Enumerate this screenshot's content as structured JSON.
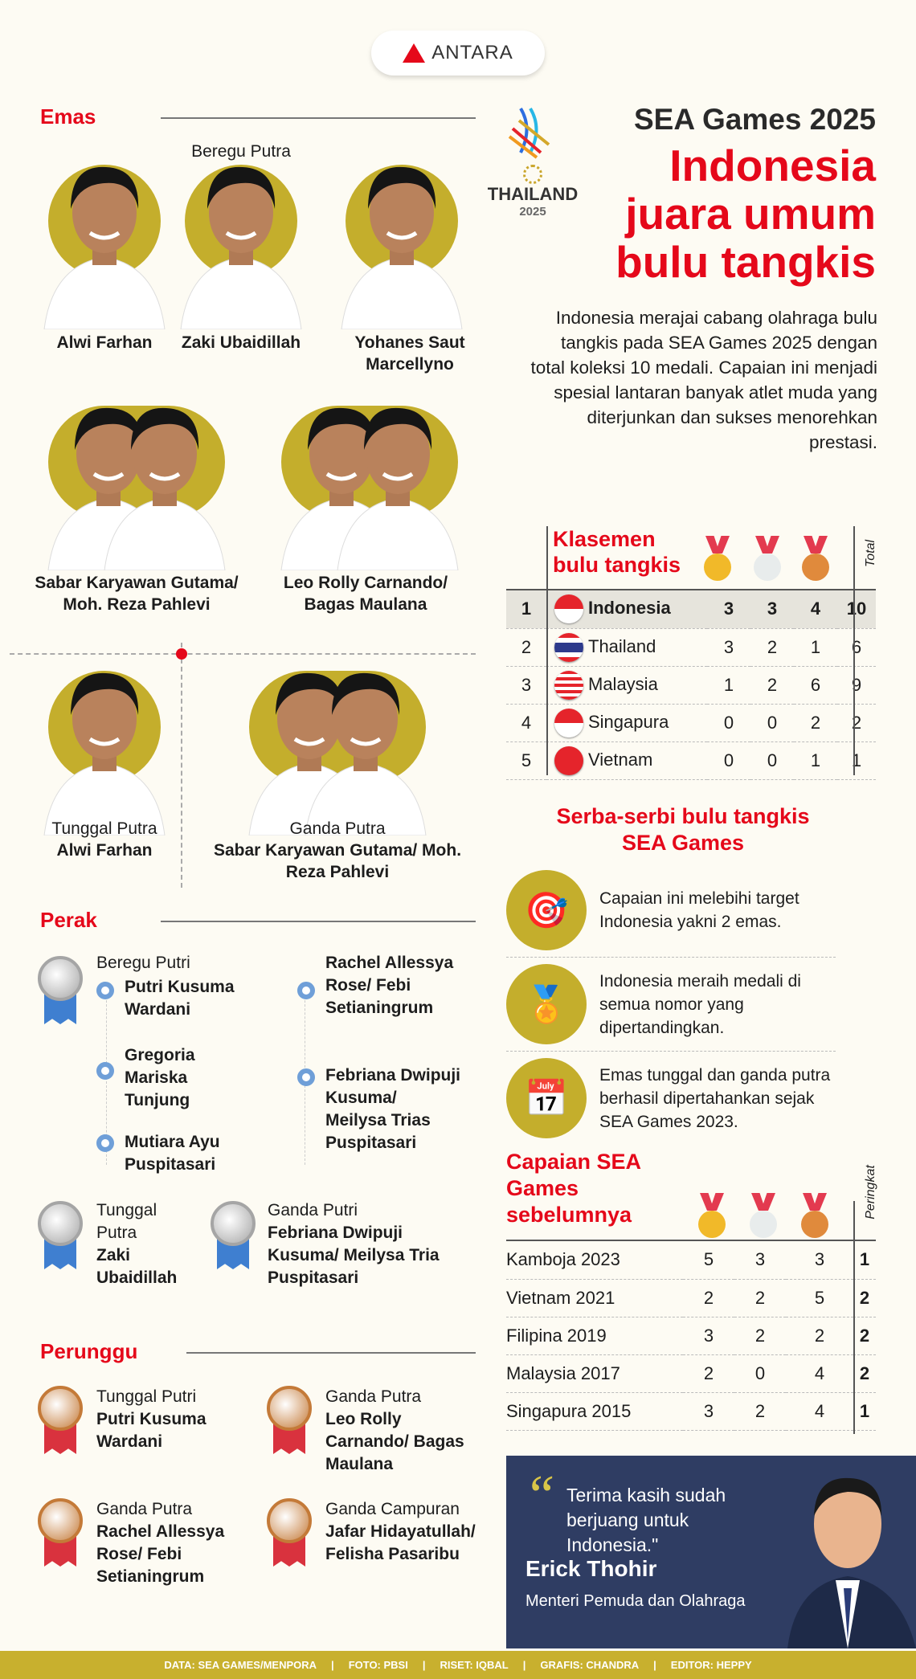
{
  "brand": "ANTARA",
  "colors": {
    "accent_red": "#e5081a",
    "gold_circle": "#c4ae2c",
    "navy": "#2f3d63",
    "footer": "#c8b02e",
    "background": "#fdfbf3"
  },
  "logo": {
    "country": "THAILAND",
    "year": "2025"
  },
  "header": {
    "title": "SEA Games 2025",
    "headline": [
      "Indonesia",
      "juara umum",
      "bulu tangkis"
    ],
    "intro": "Indonesia merajai cabang olahraga bulu tangkis pada SEA Games 2025 dengan total koleksi 10 medali. Capaian ini menjadi spesial lantaran banyak atlet muda yang diterjunkan dan sukses menorehkan prestasi."
  },
  "gold": {
    "title": "Emas",
    "team_label": "Beregu Putra",
    "team": [
      "Alwi Farhan",
      "Zaki Ubaidillah",
      "Yohanes Saut Marcellyno",
      "Sabar Karyawan Gutama/ Moh. Reza Pahlevi",
      "Leo Rolly Carnando/ Bagas Maulana"
    ],
    "singles": {
      "label": "Tunggal Putra",
      "name": "Alwi Farhan"
    },
    "doubles": {
      "label": "Ganda Putra",
      "name": "Sabar Karyawan Gutama/ Moh. Reza Pahlevi"
    }
  },
  "silver": {
    "title": "Perak",
    "team": {
      "label": "Beregu Putri",
      "members": [
        "Putri Kusuma Wardani",
        "Gregoria Mariska Tunjung",
        "Mutiara Ayu Puspitasari",
        "Rachel Allessya Rose/ Febi Setianingrum",
        "Febriana Dwipuji Kusuma/ Meilysa Trias Puspitasari"
      ]
    },
    "singles": {
      "label": "Tunggal Putra",
      "name": "Zaki Ubaidillah"
    },
    "doubles": {
      "label": "Ganda Putri",
      "name": "Febriana Dwipuji Kusuma/ Meilysa Tria Puspitasari"
    }
  },
  "bronze": {
    "title": "Perunggu",
    "items": [
      {
        "label": "Tunggal Putri",
        "name": "Putri Kusuma Wardani"
      },
      {
        "label": "Ganda Putra",
        "name": "Leo Rolly Carnando/ Bagas Maulana"
      },
      {
        "label": "Ganda Putra",
        "name": "Rachel Allessya Rose/ Febi Setianingrum"
      },
      {
        "label": "Ganda Campuran",
        "name": "Jafar Hidayatullah/ Felisha Pasaribu"
      }
    ]
  },
  "standings": {
    "title": "Klasemen bulu tangkis",
    "total_label": "Total",
    "rows": [
      {
        "rank": "1",
        "country": "Indonesia",
        "gold": "3",
        "silver": "3",
        "bronze": "4",
        "total": "10"
      },
      {
        "rank": "2",
        "country": "Thailand",
        "gold": "3",
        "silver": "2",
        "bronze": "1",
        "total": "6"
      },
      {
        "rank": "3",
        "country": "Malaysia",
        "gold": "1",
        "silver": "2",
        "bronze": "6",
        "total": "9"
      },
      {
        "rank": "4",
        "country": "Singapura",
        "gold": "0",
        "silver": "0",
        "bronze": "2",
        "total": "2"
      },
      {
        "rank": "5",
        "country": "Vietnam",
        "gold": "0",
        "silver": "0",
        "bronze": "1",
        "total": "1"
      }
    ]
  },
  "facts": {
    "title": "Serba-serbi bulu tangkis SEA Games",
    "items": [
      {
        "icon": "target-shuttlecock-icon",
        "text": "Capaian ini melebihi target Indonesia yakni 2 emas."
      },
      {
        "icon": "medals-icon",
        "text": "Indonesia meraih medali di semua nomor yang dipertandingkan."
      },
      {
        "icon": "calendar-badge-icon",
        "text": "Emas tunggal dan ganda putra berhasil dipertahankan sejak SEA Games 2023."
      }
    ]
  },
  "history": {
    "title": "Capaian SEA Games sebelumnya",
    "rank_label": "Peringkat",
    "rows": [
      {
        "event": "Kamboja 2023",
        "gold": "5",
        "silver": "3",
        "bronze": "3",
        "rank": "1"
      },
      {
        "event": "Vietnam 2021",
        "gold": "2",
        "silver": "2",
        "bronze": "5",
        "rank": "2"
      },
      {
        "event": "Filipina 2019",
        "gold": "3",
        "silver": "2",
        "bronze": "2",
        "rank": "2"
      },
      {
        "event": "Malaysia 2017",
        "gold": "2",
        "silver": "0",
        "bronze": "4",
        "rank": "2"
      },
      {
        "event": "Singapura 2015",
        "gold": "3",
        "silver": "2",
        "bronze": "4",
        "rank": "1"
      }
    ]
  },
  "quote": {
    "text": "Terima kasih sudah berjuang untuk Indonesia.\"",
    "name": "Erick Thohir",
    "role": "Menteri Pemuda dan Olahraga"
  },
  "footer": [
    "DATA: SEA GAMES/MENPORA",
    "FOTO: PBSI",
    "RISET: IQBAL",
    "GRAFIS: CHANDRA",
    "EDITOR: HEPPY"
  ]
}
